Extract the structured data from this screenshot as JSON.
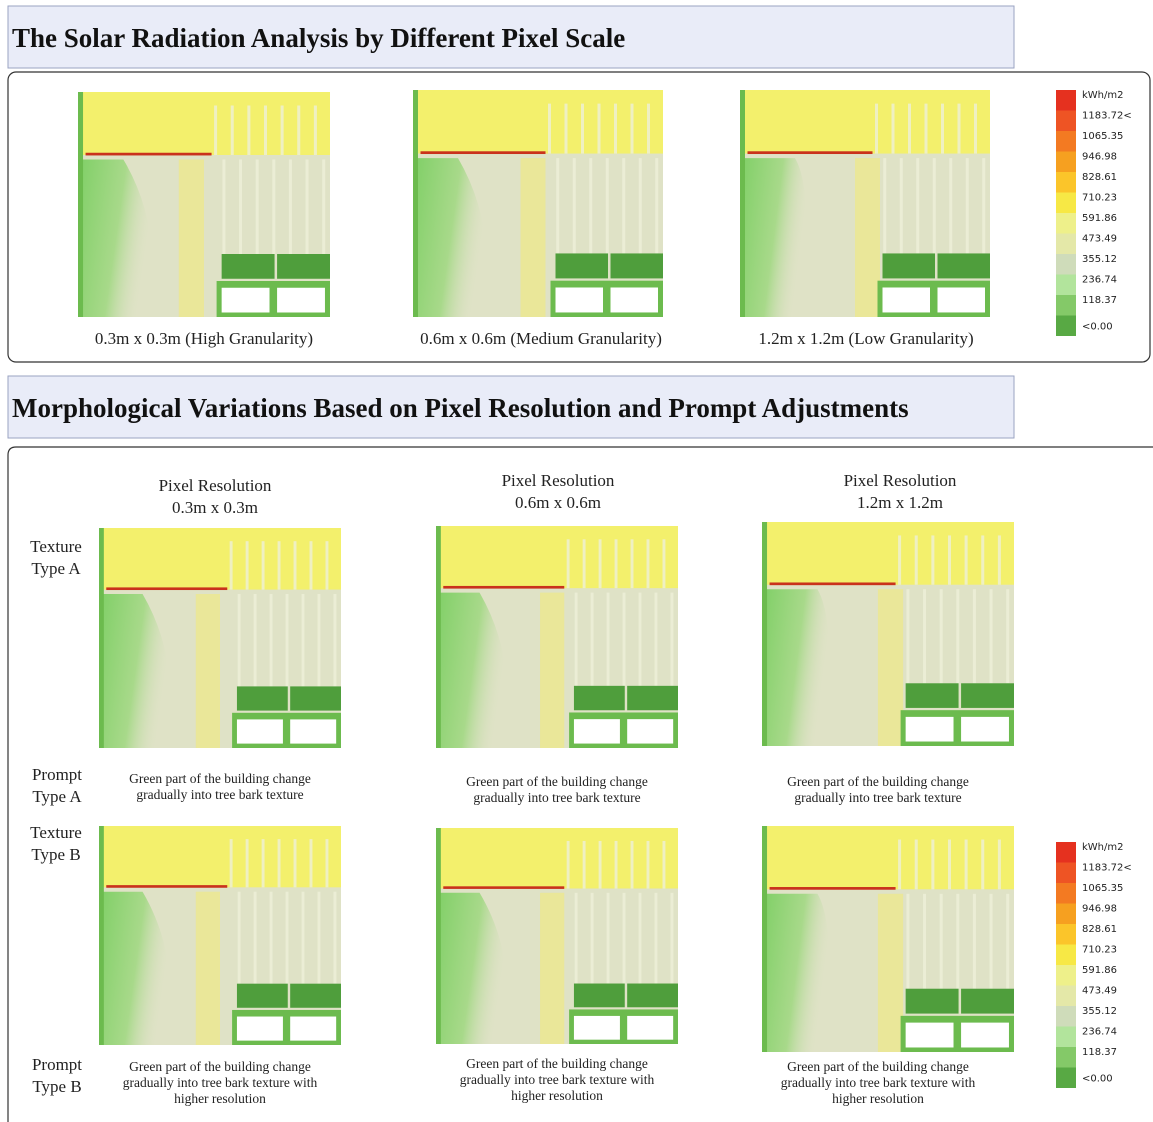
{
  "sections": [
    {
      "title": "The Solar Radiation Analysis by Different Pixel Scale",
      "panels": [
        {
          "caption": "0.3m x 0.3m (High Granularity)"
        },
        {
          "caption": "0.6m x 0.6m (Medium Granularity)"
        },
        {
          "caption": "1.2m x 1.2m (Low Granularity)"
        }
      ]
    },
    {
      "title": "Morphological Variations Based on Pixel Resolution and Prompt Adjustments",
      "columns": [
        {
          "header": [
            "Pixel Resolution",
            "0.3m x 0.3m"
          ]
        },
        {
          "header": [
            "Pixel Resolution",
            "0.6m x 0.6m"
          ]
        },
        {
          "header": [
            "Pixel Resolution",
            "1.2m x 1.2m"
          ]
        }
      ],
      "rows": [
        {
          "texture_label": [
            "Texture",
            "Type A"
          ],
          "prompt_label": [
            "Prompt",
            "Type A"
          ],
          "prompts": [
            [
              "Green part of the building change",
              "gradually into tree bark texture"
            ],
            [
              "Green part of the building change",
              "gradually into tree bark texture"
            ],
            [
              "Green part of the building change",
              "gradually into tree bark texture"
            ]
          ]
        },
        {
          "texture_label": [
            "Texture",
            "Type B"
          ],
          "prompt_label": [
            "Prompt",
            "Type B"
          ],
          "prompts": [
            [
              "Green part of the building change",
              "gradually into tree bark texture with",
              "higher resolution"
            ],
            [
              "Green part of the building change",
              "gradually into tree bark texture with",
              "higher resolution"
            ],
            [
              "Green part of the building change",
              "gradually into tree bark texture with",
              "higher resolution"
            ]
          ]
        }
      ]
    }
  ],
  "legend": {
    "labels": [
      "kWh/m2",
      "1183.72<",
      "1065.35",
      "946.98",
      "828.61",
      "710.23",
      "591.86",
      "473.49",
      "355.12",
      "236.74",
      "118.37",
      "<0.00"
    ],
    "colors": [
      "#e5311f",
      "#ee5424",
      "#f37a22",
      "#f6a020",
      "#fbc52a",
      "#f7e845",
      "#eef08a",
      "#e4e8a8",
      "#cfdcba",
      "#b2e49c",
      "#84c968",
      "#58a944"
    ]
  }
}
